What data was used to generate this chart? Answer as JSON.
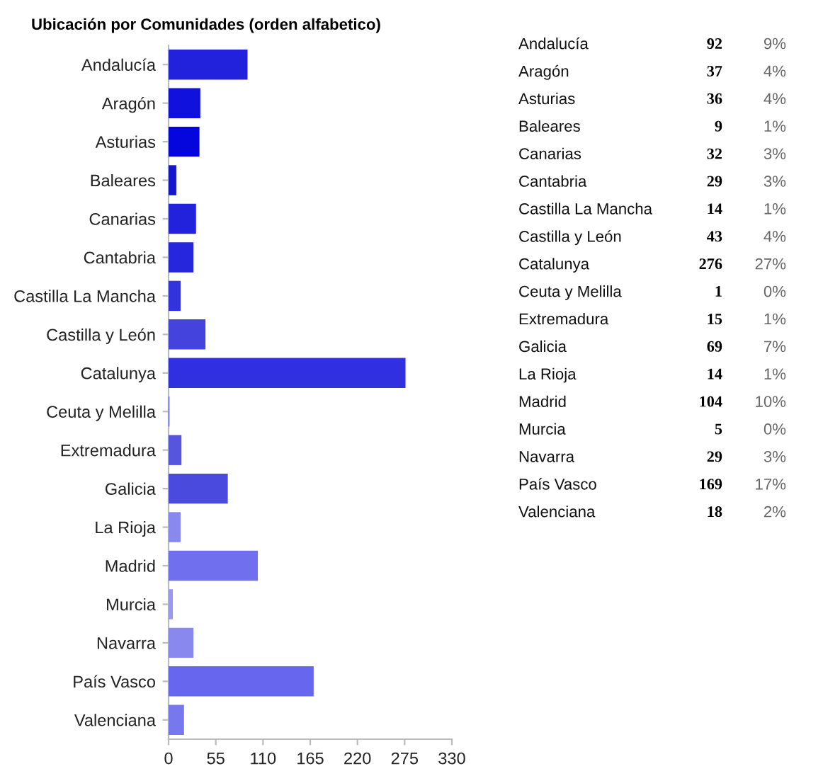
{
  "chart_data": [
    {
      "type": "bar",
      "orientation": "horizontal",
      "title": "Ubicación por Comunidades (orden alfabetico)",
      "categories": [
        "Andalucía",
        "Aragón",
        "Asturias",
        "Baleares",
        "Canarias",
        "Cantabria",
        "Castilla La Mancha",
        "Castilla y León",
        "Catalunya",
        "Ceuta y Melilla",
        "Extremadura",
        "Galicia",
        "La Rioja",
        "Madrid",
        "Murcia",
        "Navarra",
        "País Vasco",
        "Valenciana"
      ],
      "values": [
        92,
        37,
        36,
        9,
        32,
        29,
        14,
        43,
        276,
        1,
        15,
        69,
        14,
        104,
        5,
        29,
        169,
        18
      ],
      "colors": [
        "#2222dd",
        "#1111dd",
        "#0505dd",
        "#1515cc",
        "#2222dd",
        "#2626dd",
        "#3333dd",
        "#4444dd",
        "#3030e0",
        "#5555dd",
        "#5555dd",
        "#4a4add",
        "#8888ee",
        "#7070ee",
        "#9999ee",
        "#8888ee",
        "#6666ee",
        "#7777ee"
      ],
      "xlim": [
        0,
        330
      ],
      "xticks": [
        0,
        55,
        110,
        165,
        220,
        275,
        330
      ],
      "grid": false,
      "legend": false
    },
    {
      "type": "other",
      "annotations": [
        "Andalucía",
        "92",
        "9%",
        "Aragón",
        "37",
        "4%",
        "Asturias",
        "36",
        "4%",
        "Baleares",
        "9",
        "1%",
        "Canarias",
        "32",
        "3%",
        "Cantabria",
        "29",
        "3%",
        "Castilla La Mancha",
        "14",
        "1%",
        "Castilla y León",
        "43",
        "4%",
        "Catalunya",
        "276",
        "27%",
        "Ceuta y Melilla",
        "1",
        "0%",
        "Extremadura",
        "15",
        "1%",
        "Galicia",
        "69",
        "7%",
        "La Rioja",
        "14",
        "1%",
        "Madrid",
        "104",
        "10%",
        "Murcia",
        "5",
        "0%",
        "Navarra",
        "29",
        "3%",
        "País Vasco",
        "169",
        "17%",
        "Valenciana",
        "18",
        "2%"
      ]
    }
  ]
}
